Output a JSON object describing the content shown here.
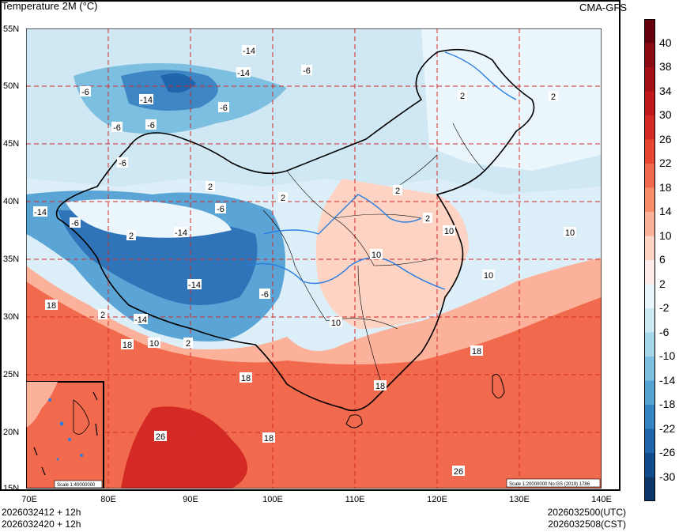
{
  "header": {
    "title": "Temperature  2M (°C)",
    "brand": "CMA-GFS"
  },
  "map": {
    "lat_labels": [
      "55N",
      "50N",
      "45N",
      "40N",
      "35N",
      "30N",
      "25N",
      "20N",
      "15N"
    ],
    "lon_labels": [
      "70E",
      "80E",
      "90E",
      "100E",
      "110E",
      "120E",
      "130E",
      "140E"
    ],
    "contour_labels": [
      "-14",
      "-14",
      "-6",
      "-6",
      "-14",
      "-6",
      "-6",
      "-6",
      "-6",
      "2",
      "2",
      "2",
      "2",
      "-14",
      "-6",
      "-14",
      "2",
      "-6",
      "-14",
      "10",
      "10",
      "2",
      "18",
      "18",
      "10",
      "-14",
      "2",
      "18",
      "18",
      "10",
      "18",
      "18",
      "26",
      "26",
      "2",
      "2",
      "10",
      "-6",
      "10"
    ],
    "inset_scale": "Scale 1:40000000",
    "main_scale": "Scale 1:20000000 No:GS (2019) 1786"
  },
  "footer": {
    "init_utc": "2026032412 + 12h",
    "init_cst": "2026032420 + 12h",
    "valid_utc": "2026032500(UTC)",
    "valid_cst": "2026032508(CST)"
  },
  "colorbar": {
    "labels": [
      "40",
      "38",
      "34",
      "30",
      "26",
      "22",
      "18",
      "14",
      "10",
      "6",
      "2",
      "-2",
      "-6",
      "-10",
      "-14",
      "-18",
      "-22",
      "-26",
      "-30"
    ],
    "colors": [
      "#67000d",
      "#8b0a14",
      "#a50f15",
      "#c0181b",
      "#d42a26",
      "#e6452f",
      "#f26a4d",
      "#f88d6c",
      "#fcb29a",
      "#fdd3c3",
      "#fdecea",
      "#e8f5fa",
      "#cbe8f3",
      "#a6d6ea",
      "#7dbfe0",
      "#54a3d3",
      "#3484c2",
      "#1e65ab",
      "#124b8c",
      "#0c3569"
    ]
  }
}
